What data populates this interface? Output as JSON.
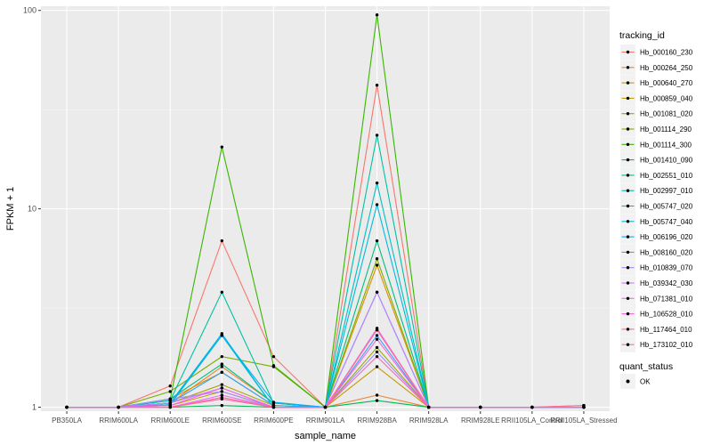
{
  "chart_data": {
    "type": "line",
    "yscale": "log10",
    "ylabel": "FPKM + 1",
    "xlabel": "sample_name",
    "ylim": [
      0.955,
      105
    ],
    "yticks": [
      1,
      10,
      100
    ],
    "ytick_labels": [
      "1",
      "10",
      "100"
    ],
    "categories": [
      "PB350LA",
      "RRIM600LA",
      "RRIM600LE",
      "RRIM600SE",
      "RRIM600PE",
      "RRIM901LA",
      "RRIM928BA",
      "RRIM928LA",
      "RRIM928LE",
      "RRII105LA_Control",
      "RRII105LA_Stressed"
    ],
    "legend_color_title": "tracking_id",
    "legend_shape_title": "quant_status",
    "legend_shape_label": "OK",
    "series": [
      {
        "name": "Hb_000160_230",
        "color": "#F8766D",
        "values": [
          1,
          1,
          1.28,
          6.9,
          1.8,
          1,
          42,
          1,
          1,
          1,
          1
        ]
      },
      {
        "name": "Hb_000264_250",
        "color": "#EA8331",
        "values": [
          1,
          1,
          1.05,
          1.6,
          1.05,
          1,
          1.15,
          1,
          1,
          1,
          1
        ]
      },
      {
        "name": "Hb_000640_270",
        "color": "#D89000",
        "values": [
          1,
          1,
          1.1,
          1.5,
          1.02,
          1,
          5.2,
          1,
          1,
          1,
          1
        ]
      },
      {
        "name": "Hb_000859_040",
        "color": "#C09B00",
        "values": [
          1,
          1,
          1.02,
          1.2,
          1.0,
          1,
          1.6,
          1,
          1,
          1,
          1
        ]
      },
      {
        "name": "Hb_001081_020",
        "color": "#A3A500",
        "values": [
          1,
          1,
          1.05,
          1.3,
          1.02,
          1,
          2.0,
          1,
          1,
          1,
          1
        ]
      },
      {
        "name": "Hb_001114_290",
        "color": "#7CAE00",
        "values": [
          1,
          1,
          1.2,
          1.8,
          1.6,
          1,
          5.6,
          1,
          1,
          1,
          1
        ]
      },
      {
        "name": "Hb_001114_300",
        "color": "#39B600",
        "values": [
          1,
          1,
          1.1,
          20.5,
          1.62,
          1,
          95,
          1,
          1,
          1,
          1
        ]
      },
      {
        "name": "Hb_001410_090",
        "color": "#00BB4E",
        "values": [
          1,
          1,
          1.0,
          1.02,
          1.0,
          1,
          1.08,
          1,
          1,
          1,
          1
        ]
      },
      {
        "name": "Hb_002551_010",
        "color": "#00BF7D",
        "values": [
          1,
          1,
          1.1,
          1.65,
          1.05,
          1,
          6.9,
          1,
          1,
          1,
          1
        ]
      },
      {
        "name": "Hb_002997_010",
        "color": "#00C1A3",
        "values": [
          1,
          1,
          1.08,
          3.8,
          1.05,
          1,
          23.5,
          1,
          1,
          1,
          1
        ]
      },
      {
        "name": "Hb_005747_020",
        "color": "#00BFC4",
        "values": [
          1,
          1,
          1.05,
          2.3,
          1.0,
          1,
          13.5,
          1,
          1,
          1,
          1
        ]
      },
      {
        "name": "Hb_005747_040",
        "color": "#00BAE0",
        "values": [
          1,
          1,
          1.05,
          2.35,
          1.0,
          1,
          10.5,
          1,
          1,
          1,
          1
        ]
      },
      {
        "name": "Hb_006196_020",
        "color": "#00B0F6",
        "values": [
          1,
          1,
          1.03,
          2.3,
          1.06,
          1,
          3.8,
          1,
          1,
          1,
          1
        ]
      },
      {
        "name": "Hb_008160_020",
        "color": "#35A2FF",
        "values": [
          1,
          1,
          1.05,
          1.5,
          1.02,
          1,
          2.3,
          1,
          1,
          1,
          1
        ]
      },
      {
        "name": "Hb_010839_070",
        "color": "#9590FF",
        "values": [
          1,
          1,
          1.1,
          1.2,
          1.0,
          1,
          1.9,
          1,
          1,
          1,
          1
        ]
      },
      {
        "name": "Hb_039342_030",
        "color": "#C77CFF",
        "values": [
          1,
          1,
          1.05,
          1.25,
          1.0,
          1,
          3.8,
          1,
          1,
          1,
          1
        ]
      },
      {
        "name": "Hb_071381_010",
        "color": "#E76BF3",
        "values": [
          1,
          1,
          1.0,
          1.15,
          1.0,
          1,
          2.5,
          1,
          1,
          1,
          1
        ]
      },
      {
        "name": "Hb_106528_010",
        "color": "#FA62DB",
        "values": [
          1,
          1,
          1.02,
          1.25,
          1.0,
          1,
          2.2,
          1,
          1,
          1,
          1
        ]
      },
      {
        "name": "Hb_117464_010",
        "color": "#FF62BC",
        "values": [
          1,
          1,
          1.0,
          1.1,
          1.0,
          1,
          1.8,
          1,
          1,
          1,
          1.02
        ]
      },
      {
        "name": "Hb_173102_010",
        "color": "#FF6C91",
        "values": [
          1,
          1,
          1.0,
          1.12,
          1.0,
          1,
          2.45,
          1,
          1,
          1,
          1.02
        ]
      }
    ]
  }
}
